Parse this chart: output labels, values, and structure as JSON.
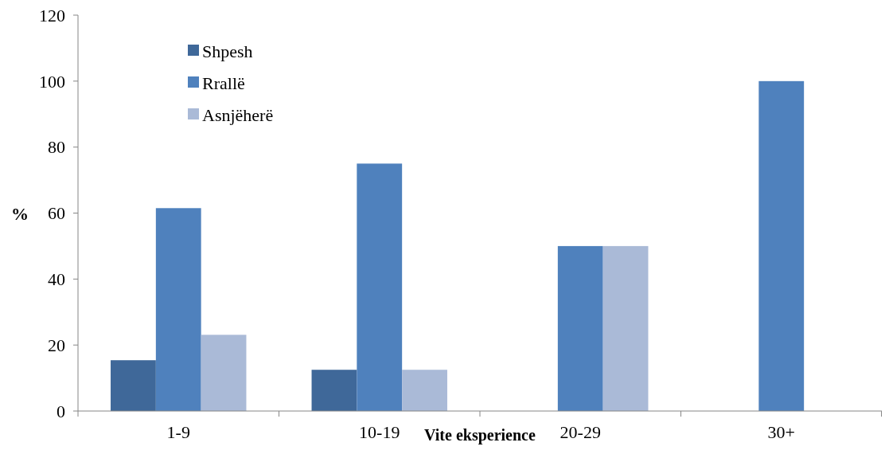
{
  "chart_data": {
    "type": "bar",
    "xlabel": "Vite eksperience",
    "ylabel": "%",
    "categories": [
      "1-9",
      "10-19",
      "20-29",
      "30+"
    ],
    "series": [
      {
        "name": "Shpesh",
        "color": "#3f6899",
        "values": [
          15.4,
          12.5,
          0,
          0
        ]
      },
      {
        "name": "Rrallë",
        "color": "#4f81bd",
        "values": [
          61.5,
          75,
          50,
          100
        ]
      },
      {
        "name": "Asnjëherë",
        "color": "#aabad7",
        "values": [
          23.1,
          12.5,
          50,
          0
        ]
      }
    ],
    "ylim": [
      0,
      120
    ],
    "yticks": [
      0,
      20,
      40,
      60,
      80,
      100,
      120
    ],
    "legend": "top left",
    "grid": false
  }
}
